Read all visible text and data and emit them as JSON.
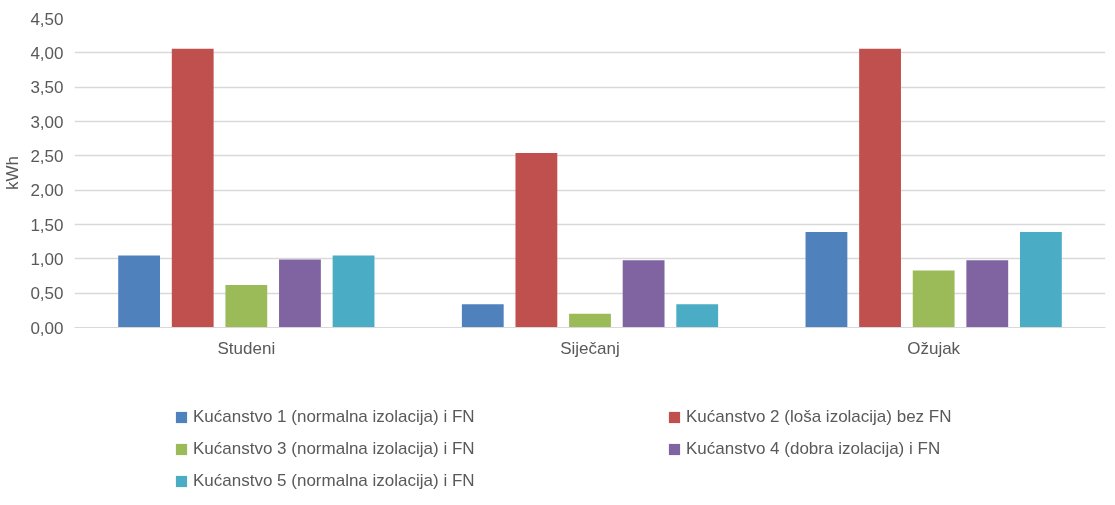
{
  "chart_data": {
    "type": "bar",
    "ylabel": "kWh",
    "categories": [
      "Studeni",
      "Siječanj",
      "Ožujak"
    ],
    "series": [
      {
        "name": "Kućanstvo 1 (normalna izolacija) i FN",
        "color": "#4f81bd",
        "values": [
          1.05,
          0.34,
          1.39
        ]
      },
      {
        "name": "Kućanstvo 2 (loša izolacija) bez FN",
        "color": "#c0504d",
        "values": [
          4.06,
          2.54,
          4.06
        ]
      },
      {
        "name": "Kućanstvo 3 (normalna izolacija) i FN",
        "color": "#9bbb59",
        "values": [
          0.62,
          0.2,
          0.83
        ]
      },
      {
        "name": "Kućanstvo 4 (dobra izolacija) i FN",
        "color": "#8064a2",
        "values": [
          0.99,
          0.98,
          0.98
        ]
      },
      {
        "name": "Kućanstvo 5 (normalna izolacija) i FN",
        "color": "#4bacc6",
        "values": [
          1.05,
          0.34,
          1.39
        ]
      }
    ],
    "ylim": [
      0,
      4.5
    ],
    "yticks": [
      {
        "value": 0,
        "label": "0,00"
      },
      {
        "value": 0.5,
        "label": "0,50"
      },
      {
        "value": 1,
        "label": "1,00"
      },
      {
        "value": 1.5,
        "label": "1,50"
      },
      {
        "value": 2,
        "label": "2,00"
      },
      {
        "value": 2.5,
        "label": "2,50"
      },
      {
        "value": 3,
        "label": "3,00"
      },
      {
        "value": 3.5,
        "label": "3,50"
      },
      {
        "value": 4,
        "label": "4,00"
      },
      {
        "value": 4.5,
        "label": "4,50"
      }
    ],
    "grid": "y",
    "legend": "bottom"
  }
}
